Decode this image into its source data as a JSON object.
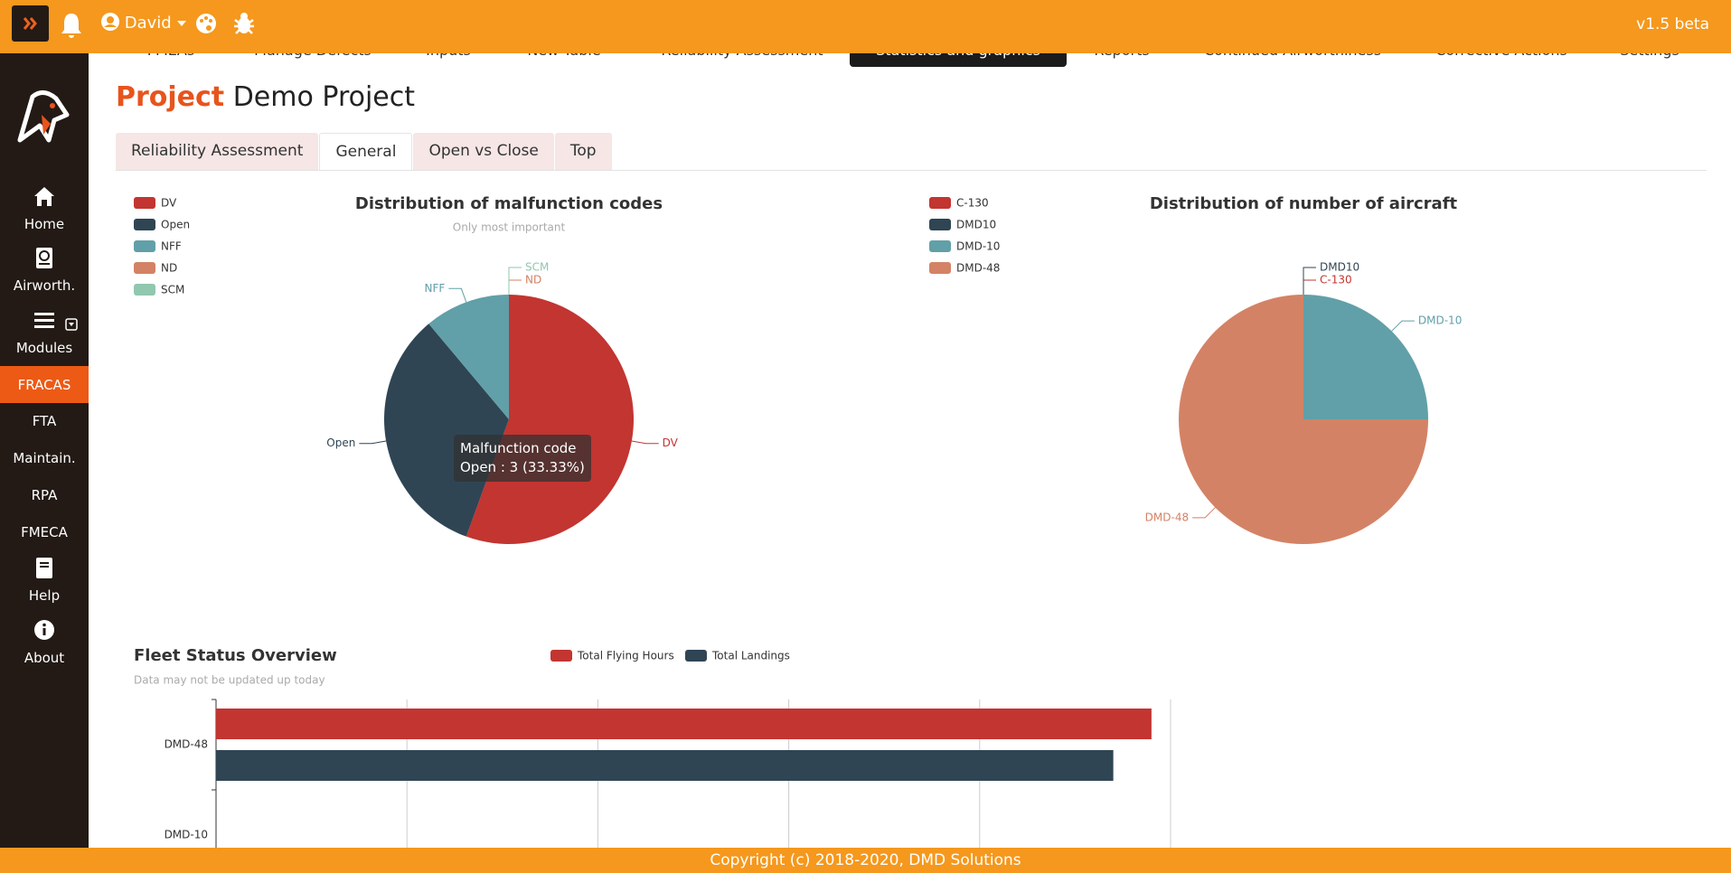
{
  "header": {
    "user": "David",
    "version": "v1.5 beta"
  },
  "nav": {
    "items": [
      "FMEAs",
      "Manage Defects",
      "Inputs",
      "New Table",
      "Reliability Assessment",
      "Statistics and graphics",
      "Reports",
      "Continued Airworthiness",
      "Corrective Actions",
      "Settings"
    ],
    "active": 5
  },
  "sidebar": {
    "items": [
      "Home",
      "Airworth.",
      "Modules",
      "FRACAS",
      "FTA",
      "Maintain.",
      "RPA",
      "FMECA",
      "Help",
      "About"
    ],
    "active": 3
  },
  "project": {
    "label": "Project",
    "name": "Demo Project"
  },
  "tabs": {
    "items": [
      "Reliability Assessment",
      "General",
      "Open vs Close",
      "Top"
    ],
    "active": 1
  },
  "charts": [
    {
      "type": "pie",
      "title": "Distribution of malfunction codes",
      "subtitle": "Only most important",
      "categories": [
        "DV",
        "Open",
        "NFF",
        "ND",
        "SCM"
      ],
      "values": [
        5,
        3,
        1,
        0,
        0
      ],
      "colors": [
        "#c23531",
        "#2f4554",
        "#61a0a8",
        "#d48265",
        "#91c7ae"
      ],
      "tooltip": {
        "title": "Malfunction code",
        "text": "Open : 3 (33.33%)"
      }
    },
    {
      "type": "pie",
      "title": "Distribution of number of aircraft",
      "categories": [
        "C-130",
        "DMD10",
        "DMD-10",
        "DMD-48"
      ],
      "values": [
        0,
        0,
        1,
        3
      ],
      "colors": [
        "#c23531",
        "#2f4554",
        "#61a0a8",
        "#d48265"
      ]
    },
    {
      "type": "bar",
      "orientation": "horizontal",
      "title": "Fleet Status Overview",
      "subtitle": "Data may not be updated up today",
      "categories": [
        "DMD-48",
        "DMD-10"
      ],
      "series": [
        {
          "name": "Total Flying Hours",
          "color": "#c23531",
          "values": [
            4.9,
            null
          ]
        },
        {
          "name": "Total Landings",
          "color": "#2f4554",
          "values": [
            4.7,
            null
          ]
        }
      ],
      "xlim": [
        0,
        5
      ],
      "xticks": [
        0,
        1,
        2,
        3,
        4,
        5
      ],
      "grid": true
    }
  ],
  "footer": "Copyright (c) 2018-2020, DMD Solutions"
}
